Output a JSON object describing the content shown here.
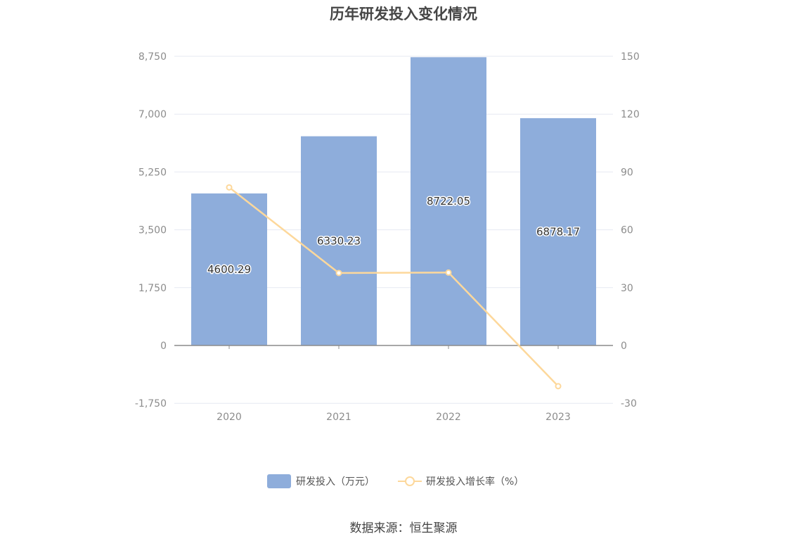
{
  "title": "历年研发投入变化情况",
  "source": "数据来源：恒生聚源",
  "colors": {
    "bar": "#8eaddb",
    "line": "#fdd89b",
    "grid": "#e6e9f2",
    "axis": "#8c8c8c"
  },
  "chart_data": {
    "type": "bar",
    "title": "历年研发投入变化情况",
    "categories": [
      "2020",
      "2021",
      "2022",
      "2023"
    ],
    "series": [
      {
        "name": "研发投入（万元）",
        "type": "bar",
        "axis": "left",
        "values": [
          4600.29,
          6330.23,
          8722.05,
          6878.17
        ],
        "labels": [
          "4600.29",
          "6330.23",
          "8722.05",
          "6878.17"
        ]
      },
      {
        "name": "研发投入增长率（%）",
        "type": "line",
        "axis": "right",
        "values": [
          82,
          37.6,
          37.8,
          -21.1
        ]
      }
    ],
    "y_left": {
      "min": -1750,
      "max": 8750,
      "ticks": [
        -1750,
        0,
        1750,
        3500,
        5250,
        7000,
        8750
      ],
      "tick_labels": [
        "-1,750",
        "0",
        "1,750",
        "3,500",
        "5,250",
        "7,000",
        "8,750"
      ]
    },
    "y_right": {
      "min": -30,
      "max": 150,
      "ticks": [
        -30,
        0,
        30,
        60,
        90,
        120,
        150
      ],
      "tick_labels": [
        "-30",
        "0",
        "30",
        "60",
        "90",
        "120",
        "150"
      ]
    },
    "grid": true,
    "legend_position": "bottom"
  }
}
